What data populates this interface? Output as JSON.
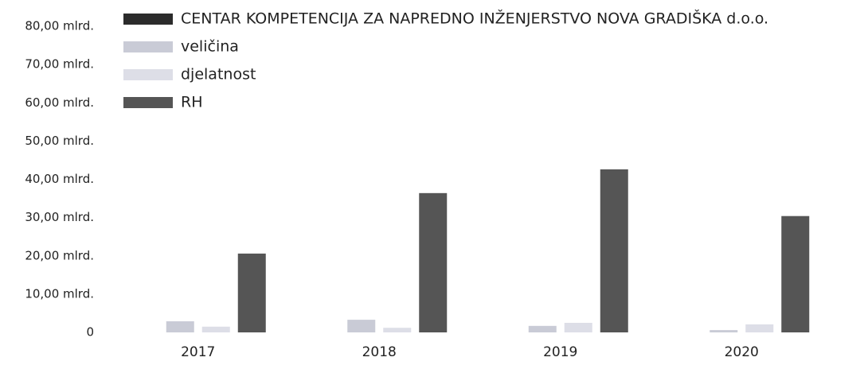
{
  "chart_data": {
    "type": "bar",
    "categories": [
      "2017",
      "2018",
      "2019",
      "2020"
    ],
    "series": [
      {
        "name": "CENTAR KOMPETENCIJA ZA NAPREDNO INŽENJERSTVO NOVA GRADIŠKA d.o.o.",
        "color": "#2b2b2b",
        "values": [
          0,
          0,
          0,
          0
        ]
      },
      {
        "name": "veličina",
        "color": "#c9cbd6",
        "values": [
          2.9,
          3.3,
          1.7,
          0.6
        ]
      },
      {
        "name": "djelatnost",
        "color": "#dddee7",
        "values": [
          1.5,
          1.2,
          2.5,
          2.1
        ]
      },
      {
        "name": "RH",
        "color": "#555555",
        "values": [
          20.6,
          36.4,
          42.6,
          30.4
        ]
      }
    ],
    "ylim": [
      0,
      80
    ],
    "yticks": [
      0,
      {
        "value": 10,
        "label": "10,00 mlrd."
      },
      {
        "value": 20,
        "label": "20,00 mlrd."
      },
      {
        "value": 30,
        "label": "30,00 mlrd."
      },
      {
        "value": 40,
        "label": "40,00 mlrd."
      },
      {
        "value": 50,
        "label": "50,00 mlrd."
      },
      {
        "value": 60,
        "label": "60,00 mlrd."
      },
      {
        "value": 70,
        "label": "70,00 mlrd."
      },
      {
        "value": 80,
        "label": "80,00 mlrd."
      }
    ],
    "grid": false,
    "legend": "top-left"
  }
}
